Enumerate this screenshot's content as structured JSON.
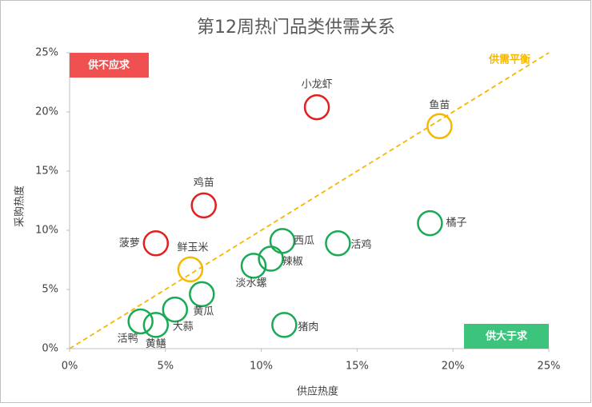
{
  "chart_data": {
    "type": "scatter",
    "title": "第12周热门品类供需关系",
    "x_label": "供应热度",
    "y_label": "采购热度",
    "xlim": [
      0,
      25
    ],
    "ylim": [
      0,
      25
    ],
    "xticks": [
      {
        "value": 0,
        "label": "0%"
      },
      {
        "value": 5,
        "label": "5%"
      },
      {
        "value": 10,
        "label": "10%"
      },
      {
        "value": 15,
        "label": "15%"
      },
      {
        "value": 20,
        "label": "20%"
      },
      {
        "value": 25,
        "label": "25%"
      }
    ],
    "yticks": [
      {
        "value": 0,
        "label": "0%"
      },
      {
        "value": 5,
        "label": "5%"
      },
      {
        "value": 10,
        "label": "10%"
      },
      {
        "value": 15,
        "label": "15%"
      },
      {
        "value": 20,
        "label": "20%"
      },
      {
        "value": 25,
        "label": "25%"
      }
    ],
    "points": [
      {
        "label": "小龙虾",
        "x": 12.9,
        "y": 20.4,
        "color": "#e02020"
      },
      {
        "label": "鱼苗",
        "x": 19.3,
        "y": 18.8,
        "color": "#f5b800"
      },
      {
        "label": "鸡苗",
        "x": 7.0,
        "y": 12.1,
        "color": "#e02020"
      },
      {
        "label": "橘子",
        "x": 18.8,
        "y": 10.6,
        "color": "#1aaa55"
      },
      {
        "label": "菠萝",
        "x": 4.5,
        "y": 8.9,
        "color": "#e02020"
      },
      {
        "label": "西瓜",
        "x": 11.1,
        "y": 9.1,
        "color": "#1aaa55"
      },
      {
        "label": "活鸡",
        "x": 14.0,
        "y": 8.9,
        "color": "#1aaa55"
      },
      {
        "label": "鲜玉米",
        "x": 6.3,
        "y": 6.7,
        "color": "#f5b800"
      },
      {
        "label": "辣椒",
        "x": 10.5,
        "y": 7.6,
        "color": "#1aaa55"
      },
      {
        "label": "淡水螺",
        "x": 9.6,
        "y": 7.0,
        "color": "#1aaa55"
      },
      {
        "label": "黄瓜",
        "x": 6.9,
        "y": 4.6,
        "color": "#1aaa55"
      },
      {
        "label": "大蒜",
        "x": 5.5,
        "y": 3.3,
        "color": "#1aaa55"
      },
      {
        "label": "活鸭",
        "x": 3.7,
        "y": 2.3,
        "color": "#1aaa55"
      },
      {
        "label": "黄鳝",
        "x": 4.5,
        "y": 2.0,
        "color": "#1aaa55"
      },
      {
        "label": "猪肉",
        "x": 11.2,
        "y": 2.0,
        "color": "#1aaa55"
      }
    ],
    "annotations": {
      "top_left": {
        "text": "供不应求",
        "color": "#f05050"
      },
      "bottom_right": {
        "text": "供大于求",
        "color": "#3cc47c"
      },
      "balance": {
        "text": "供需平衡",
        "color": "#f5b800"
      }
    }
  }
}
